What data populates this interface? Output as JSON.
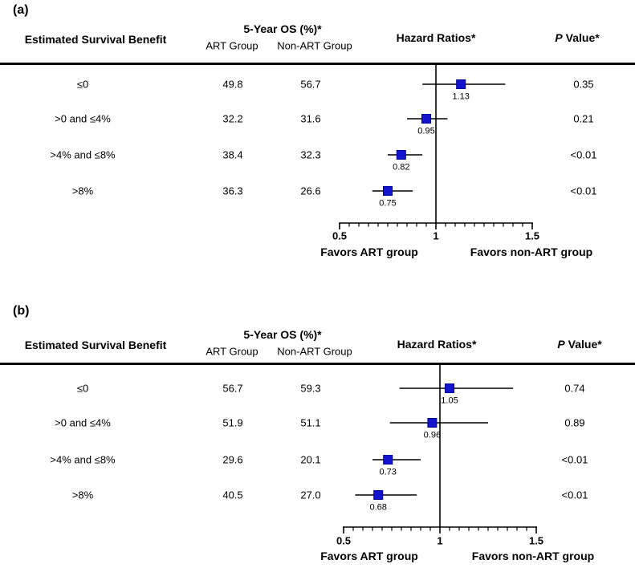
{
  "figure": {
    "marker_color": "#1414cd",
    "panels": [
      {
        "tag": "(a)",
        "headers": {
          "benefit": "Estimated Survival Benefit",
          "os": "5-Year OS (%)*",
          "art": "ART Group",
          "non_art": "Non-ART Group",
          "hazard": "Hazard Ratios*",
          "p_italic": "P",
          "p_rest": "Value*"
        },
        "rows": [
          {
            "benefit": "≤0",
            "art": "49.8",
            "non_art": "56.7",
            "hr": 1.13,
            "hr_label": "1.13",
            "ci_low": 0.93,
            "ci_high": 1.36,
            "p": "0.35"
          },
          {
            "benefit": ">0 and ≤4%",
            "art": "32.2",
            "non_art": "31.6",
            "hr": 0.95,
            "hr_label": "0.95",
            "ci_low": 0.85,
            "ci_high": 1.06,
            "p": "0.21"
          },
          {
            "benefit": ">4% and ≤8%",
            "art": "38.4",
            "non_art": "32.3",
            "hr": 0.82,
            "hr_label": "0.82",
            "ci_low": 0.75,
            "ci_high": 0.93,
            "p": "<0.01"
          },
          {
            "benefit": ">8%",
            "art": "36.3",
            "non_art": "26.6",
            "hr": 0.75,
            "hr_label": "0.75",
            "ci_low": 0.67,
            "ci_high": 0.88,
            "p": "<0.01"
          }
        ],
        "axis": {
          "tick1": "0.5",
          "tick2": "1",
          "tick3": "1.5",
          "favors_left": "Favors ART group",
          "favors_right": "Favors non-ART group"
        }
      },
      {
        "tag": "(b)",
        "headers": {
          "benefit": "Estimated Survival Benefit",
          "os": "5-Year OS (%)*",
          "art": "ART Group",
          "non_art": "Non-ART Group",
          "hazard": "Hazard Ratios*",
          "p_italic": "P",
          "p_rest": "Value*"
        },
        "rows": [
          {
            "benefit": "≤0",
            "art": "56.7",
            "non_art": "59.3",
            "hr": 1.05,
            "hr_label": "1.05",
            "ci_low": 0.79,
            "ci_high": 1.38,
            "p": "0.74"
          },
          {
            "benefit": ">0 and ≤4%",
            "art": "51.9",
            "non_art": "51.1",
            "hr": 0.96,
            "hr_label": "0.96",
            "ci_low": 0.74,
            "ci_high": 1.25,
            "p": "0.89"
          },
          {
            "benefit": ">4% and ≤8%",
            "art": "29.6",
            "non_art": "20.1",
            "hr": 0.73,
            "hr_label": "0.73",
            "ci_low": 0.65,
            "ci_high": 0.9,
            "p": "<0.01"
          },
          {
            "benefit": ">8%",
            "art": "40.5",
            "non_art": "27.0",
            "hr": 0.68,
            "hr_label": "0.68",
            "ci_low": 0.56,
            "ci_high": 0.88,
            "p": "<0.01"
          }
        ],
        "axis": {
          "tick1": "0.5",
          "tick2": "1",
          "tick3": "1.5",
          "favors_left": "Favors ART group",
          "favors_right": "Favors non-ART group"
        }
      }
    ]
  },
  "chart_data": [
    {
      "type": "scatter",
      "subtype": "forest-plot",
      "title": "(a)",
      "categories": [
        "≤0",
        ">0 and ≤4%",
        ">4% and ≤8%",
        ">8%"
      ],
      "series": [
        {
          "name": "5-Year OS (%) ART Group",
          "values": [
            49.8,
            32.2,
            38.4,
            36.3
          ]
        },
        {
          "name": "5-Year OS (%) Non-ART Group",
          "values": [
            56.7,
            31.6,
            32.3,
            26.6
          ]
        },
        {
          "name": "Hazard Ratio",
          "values": [
            1.13,
            0.95,
            0.82,
            0.75
          ]
        },
        {
          "name": "CI lower (estimated from plot)",
          "values": [
            0.93,
            0.85,
            0.75,
            0.67
          ]
        },
        {
          "name": "CI upper (estimated from plot)",
          "values": [
            1.36,
            1.06,
            0.93,
            0.88
          ]
        },
        {
          "name": "P Value",
          "values": [
            "0.35",
            "0.21",
            "<0.01",
            "<0.01"
          ]
        }
      ],
      "xlabel": "Hazard Ratios*",
      "ylabel": "Estimated Survival Benefit",
      "xlim": [
        0.5,
        1.5
      ],
      "x_ticks": [
        0.5,
        1,
        1.5
      ],
      "reference_line": 1,
      "annotations": [
        "Favors ART group",
        "Favors non-ART group"
      ],
      "grid": false,
      "legend": false
    },
    {
      "type": "scatter",
      "subtype": "forest-plot",
      "title": "(b)",
      "categories": [
        "≤0",
        ">0 and ≤4%",
        ">4% and ≤8%",
        ">8%"
      ],
      "series": [
        {
          "name": "5-Year OS (%) ART Group",
          "values": [
            56.7,
            51.9,
            29.6,
            40.5
          ]
        },
        {
          "name": "5-Year OS (%) Non-ART Group",
          "values": [
            59.3,
            51.1,
            20.1,
            27.0
          ]
        },
        {
          "name": "Hazard Ratio",
          "values": [
            1.05,
            0.96,
            0.73,
            0.68
          ]
        },
        {
          "name": "CI lower (estimated from plot)",
          "values": [
            0.79,
            0.74,
            0.65,
            0.56
          ]
        },
        {
          "name": "CI upper (estimated from plot)",
          "values": [
            1.38,
            1.25,
            0.9,
            0.88
          ]
        },
        {
          "name": "P Value",
          "values": [
            "0.74",
            "0.89",
            "<0.01",
            "<0.01"
          ]
        }
      ],
      "xlabel": "Hazard Ratios*",
      "ylabel": "Estimated Survival Benefit",
      "xlim": [
        0.5,
        1.5
      ],
      "x_ticks": [
        0.5,
        1,
        1.5
      ],
      "reference_line": 1,
      "annotations": [
        "Favors ART group",
        "Favors non-ART group"
      ],
      "grid": false,
      "legend": false
    }
  ]
}
